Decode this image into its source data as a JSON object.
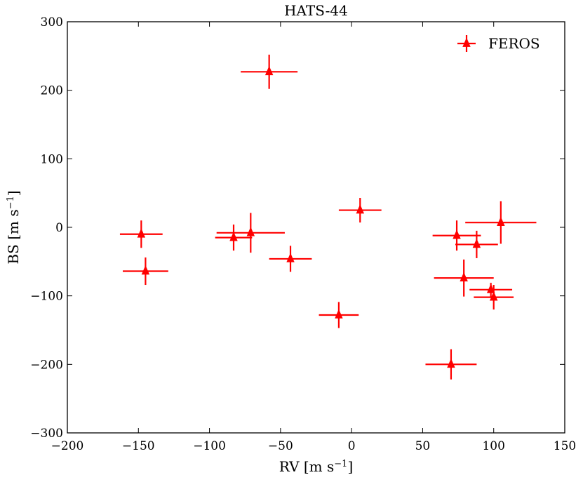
{
  "chart_data": {
    "type": "scatter",
    "title": "HATS-44",
    "xlabel": "RV [m s",
    "xlabel_sup": "−1",
    "xlabel_end": "]",
    "ylabel": "BS [m s",
    "ylabel_sup": "−1",
    "ylabel_end": "]",
    "xlim": [
      -200,
      150
    ],
    "ylim": [
      -300,
      300
    ],
    "xticks": [
      -200,
      -150,
      -100,
      -50,
      0,
      50,
      100,
      150
    ],
    "yticks": [
      -300,
      -200,
      -100,
      0,
      100,
      200,
      300
    ],
    "xtick_labels": [
      "−200",
      "−150",
      "−100",
      "−50",
      "0",
      "50",
      "100",
      "150"
    ],
    "ytick_labels": [
      "−300",
      "−200",
      "−100",
      "0",
      "100",
      "200",
      "300"
    ],
    "grid": false,
    "legend_position": "top-right",
    "series": [
      {
        "name": "FEROS",
        "color": "#ff0000",
        "marker": "triangle",
        "points": [
          {
            "x": -58,
            "y": 227,
            "xerr": 20,
            "yerr": 25
          },
          {
            "x": -148,
            "y": -10,
            "xerr": 15,
            "yerr": 20
          },
          {
            "x": -145,
            "y": -64,
            "xerr": 16,
            "yerr": 20
          },
          {
            "x": -83,
            "y": -15,
            "xerr": 13,
            "yerr": 19
          },
          {
            "x": -71,
            "y": -8,
            "xerr": 24,
            "yerr": 29
          },
          {
            "x": -43,
            "y": -46,
            "xerr": 15,
            "yerr": 19
          },
          {
            "x": -9,
            "y": -128,
            "xerr": 14,
            "yerr": 19
          },
          {
            "x": 6,
            "y": 25,
            "xerr": 15,
            "yerr": 18
          },
          {
            "x": 70,
            "y": -200,
            "xerr": 18,
            "yerr": 22
          },
          {
            "x": 74,
            "y": -12,
            "xerr": 17,
            "yerr": 22
          },
          {
            "x": 79,
            "y": -74,
            "xerr": 21,
            "yerr": 27
          },
          {
            "x": 88,
            "y": -25,
            "xerr": 15,
            "yerr": 20
          },
          {
            "x": 98,
            "y": -91,
            "xerr": 15,
            "yerr": 10
          },
          {
            "x": 100,
            "y": -102,
            "xerr": 14,
            "yerr": 18
          },
          {
            "x": 105,
            "y": 7,
            "xerr": 25,
            "yerr": 31
          }
        ]
      }
    ]
  }
}
